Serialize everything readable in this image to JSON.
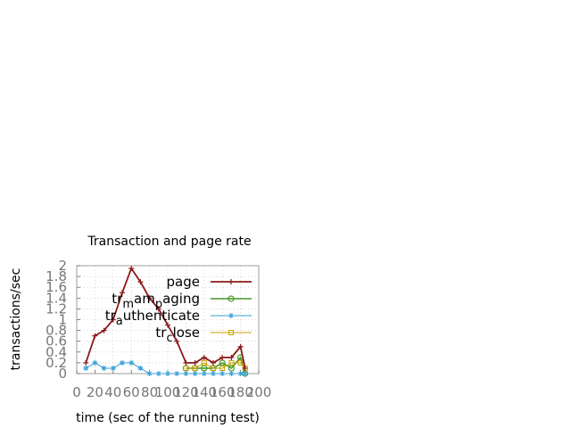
{
  "chart_data": {
    "type": "line",
    "title": "Transaction and page rate",
    "xlabel": "time (sec of the running test)",
    "ylabel": "transactions/sec",
    "xlim": [
      0,
      200
    ],
    "ylim": [
      0,
      2
    ],
    "xticks": [
      "0",
      "20",
      "40",
      "60",
      "80",
      "100",
      "120",
      "140",
      "160",
      "180",
      "200"
    ],
    "xtick_values": [
      0,
      20,
      40,
      60,
      80,
      100,
      120,
      140,
      160,
      180,
      200
    ],
    "yticks": [
      "0",
      "0.2",
      "0.4",
      "0.6",
      "0.8",
      "1",
      "1.2",
      "1.4",
      "1.6",
      "1.8",
      "2"
    ],
    "ytick_values": [
      0,
      0.2,
      0.4,
      0.6,
      0.8,
      1,
      1.2,
      1.4,
      1.6,
      1.8,
      2
    ],
    "grid": true,
    "legend_position": "top-right",
    "series": [
      {
        "name": "page",
        "color": "#8b1a1a",
        "marker": "plus",
        "x": [
          10,
          20,
          30,
          40,
          50,
          60,
          70,
          80,
          90,
          100,
          110,
          120,
          130,
          140,
          150,
          160,
          170,
          180,
          185
        ],
        "y": [
          0.2,
          0.7,
          0.8,
          1.0,
          1.5,
          1.95,
          1.7,
          1.4,
          1.2,
          0.9,
          0.6,
          0.2,
          0.2,
          0.3,
          0.2,
          0.3,
          0.3,
          0.5,
          0.1
        ]
      },
      {
        "name": "tr_campaging",
        "label_main": "tr",
        "label_sub": "m",
        "label_rest": "am",
        "label_sub2": "p",
        "label_rest2": "aging",
        "color": "#4a9a2a",
        "marker": "circle",
        "x": [
          120,
          130,
          140,
          150,
          160,
          170,
          180,
          185
        ],
        "y": [
          0.1,
          0.1,
          0.1,
          0.1,
          0.2,
          0.1,
          0.3,
          0.0
        ]
      },
      {
        "name": "tr_authenticate",
        "label_main": "tr",
        "label_sub": "a",
        "label_rest": "uthenticate",
        "color": "#3aa0d8",
        "marker": "star",
        "x": [
          10,
          20,
          30,
          40,
          50,
          60,
          70,
          80,
          90,
          100,
          110,
          120,
          130,
          140,
          150,
          160,
          170,
          180,
          185
        ],
        "y": [
          0.1,
          0.2,
          0.1,
          0.1,
          0.2,
          0.2,
          0.1,
          0.0,
          0.0,
          0.0,
          0.0,
          0.0,
          0.0,
          0.0,
          0.0,
          0.0,
          0.0,
          0.0,
          0.0
        ]
      },
      {
        "name": "tr_close",
        "label_main": "tr",
        "label_sub": "c",
        "label_rest": "lose",
        "color": "#c8a000",
        "marker": "square",
        "x": [
          120,
          130,
          140,
          150,
          160,
          170,
          180,
          185
        ],
        "y": [
          0.1,
          0.1,
          0.2,
          0.1,
          0.1,
          0.2,
          0.2,
          0.1
        ]
      }
    ]
  }
}
